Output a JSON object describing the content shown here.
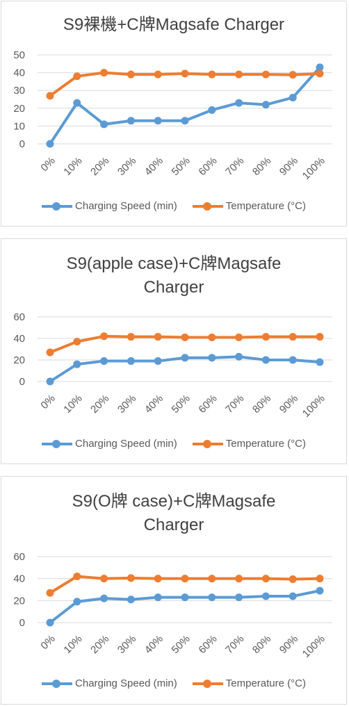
{
  "colors": {
    "speed": "#5b9bd5",
    "temperature": "#ed7d31",
    "grid": "#d9d9d9"
  },
  "chart_data": [
    {
      "type": "line",
      "title": "S9裸機+C牌Magsafe Charger",
      "categories": [
        "0%",
        "10%",
        "20%",
        "30%",
        "40%",
        "50%",
        "60%",
        "70%",
        "80%",
        "90%",
        "100%"
      ],
      "ylim": [
        0,
        50
      ],
      "yticks": [
        0,
        10,
        20,
        30,
        40,
        50
      ],
      "grid": true,
      "legend": "bottom",
      "series": [
        {
          "name": "Charging Speed (min)",
          "values": [
            0,
            23,
            11,
            13,
            13,
            13,
            19,
            23,
            22,
            26,
            43
          ]
        },
        {
          "name": "Temperature (°C)",
          "values": [
            27,
            38,
            40,
            39,
            39,
            39.5,
            39,
            39,
            39,
            38.8,
            39.5
          ]
        }
      ]
    },
    {
      "type": "line",
      "title": "S9(apple case)+C牌Magsafe Charger",
      "categories": [
        "0%",
        "10%",
        "20%",
        "30%",
        "40%",
        "50%",
        "60%",
        "70%",
        "80%",
        "90%",
        "100%"
      ],
      "ylim": [
        0,
        60
      ],
      "yticks": [
        0,
        20,
        40,
        60
      ],
      "grid": true,
      "legend": "bottom",
      "series": [
        {
          "name": "Charging Speed (min)",
          "values": [
            0,
            16,
            19,
            19,
            19,
            22,
            22,
            23,
            20,
            20,
            18
          ]
        },
        {
          "name": "Temperature (°C)",
          "values": [
            27,
            37,
            42,
            41.5,
            41.5,
            41,
            41,
            41,
            41.5,
            41.5,
            41.5
          ]
        }
      ]
    },
    {
      "type": "line",
      "title": "S9(O牌 case)+C牌Magsafe Charger",
      "categories": [
        "0%",
        "10%",
        "20%",
        "30%",
        "40%",
        "50%",
        "60%",
        "70%",
        "80%",
        "90%",
        "100%"
      ],
      "ylim": [
        0,
        60
      ],
      "yticks": [
        0,
        20,
        40,
        60
      ],
      "grid": true,
      "legend": "bottom",
      "series": [
        {
          "name": "Charging Speed (min)",
          "values": [
            0,
            19,
            22,
            21,
            23,
            23,
            23,
            23,
            24,
            24,
            29
          ]
        },
        {
          "name": "Temperature (°C)",
          "values": [
            27,
            42,
            40,
            40.5,
            40,
            40,
            40,
            40,
            40,
            39.5,
            40
          ]
        }
      ]
    }
  ]
}
